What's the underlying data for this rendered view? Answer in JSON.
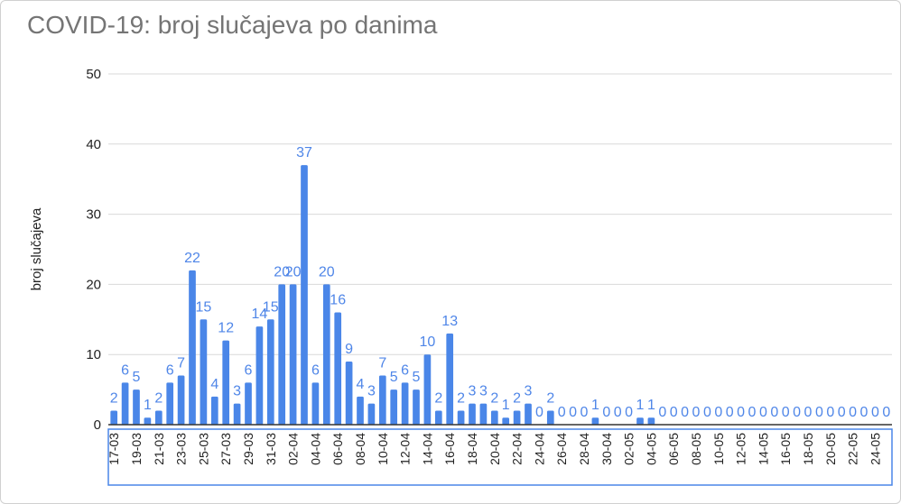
{
  "chart_data": {
    "type": "bar",
    "title": "COVID-19: broj slučajeva po danima",
    "xlabel": "",
    "ylabel": "broj slučajeva",
    "ylim": [
      0,
      50
    ],
    "yticks": [
      0,
      10,
      20,
      30,
      40,
      50
    ],
    "grid": true,
    "bar_color": "#4a86e8",
    "label_color": "#4f86e8",
    "categories": [
      "17-03",
      "18-03",
      "19-03",
      "20-03",
      "21-03",
      "22-03",
      "23-03",
      "24-03",
      "25-03",
      "26-03",
      "27-03",
      "28-03",
      "29-03",
      "30-03",
      "31-03",
      "01-04",
      "02-04",
      "03-04",
      "04-04",
      "05-04",
      "06-04",
      "07-04",
      "08-04",
      "09-04",
      "10-04",
      "11-04",
      "12-04",
      "13-04",
      "14-04",
      "15-04",
      "16-04",
      "17-04",
      "18-04",
      "19-04",
      "20-04",
      "21-04",
      "22-04",
      "23-04",
      "24-04",
      "25-04",
      "26-04",
      "27-04",
      "28-04",
      "29-04",
      "30-04",
      "01-05",
      "02-05",
      "03-05",
      "04-05",
      "05-05",
      "06-05",
      "07-05",
      "08-05",
      "09-05",
      "10-05",
      "11-05",
      "12-05",
      "13-05",
      "14-05",
      "15-05",
      "16-05",
      "17-05",
      "18-05",
      "19-05",
      "20-05",
      "21-05",
      "22-05",
      "23-05",
      "24-05",
      "25-05"
    ],
    "values": [
      2,
      6,
      5,
      1,
      2,
      6,
      7,
      22,
      15,
      4,
      12,
      3,
      6,
      14,
      15,
      20,
      20,
      37,
      6,
      20,
      16,
      9,
      4,
      3,
      7,
      5,
      6,
      5,
      10,
      2,
      13,
      2,
      3,
      3,
      2,
      1,
      2,
      3,
      0,
      2,
      0,
      0,
      0,
      1,
      0,
      0,
      0,
      1,
      1,
      0,
      0,
      0,
      0,
      0,
      0,
      0,
      0,
      0,
      0,
      0,
      0,
      0,
      0,
      0,
      0,
      0,
      0,
      0,
      0,
      0
    ],
    "tick_labels": [
      "17-03",
      "19-03",
      "21-03",
      "23-03",
      "25-03",
      "27-03",
      "29-03",
      "31-03",
      "02-04",
      "04-04",
      "06-04",
      "08-04",
      "10-04",
      "12-04",
      "14-04",
      "16-04",
      "18-04",
      "20-04",
      "22-04",
      "24-04",
      "26-04",
      "28-04",
      "30-04",
      "02-05",
      "04-05",
      "06-05",
      "08-05",
      "10-05",
      "12-05",
      "14-05",
      "16-05",
      "18-05",
      "20-05",
      "22-05",
      "24-05"
    ]
  }
}
